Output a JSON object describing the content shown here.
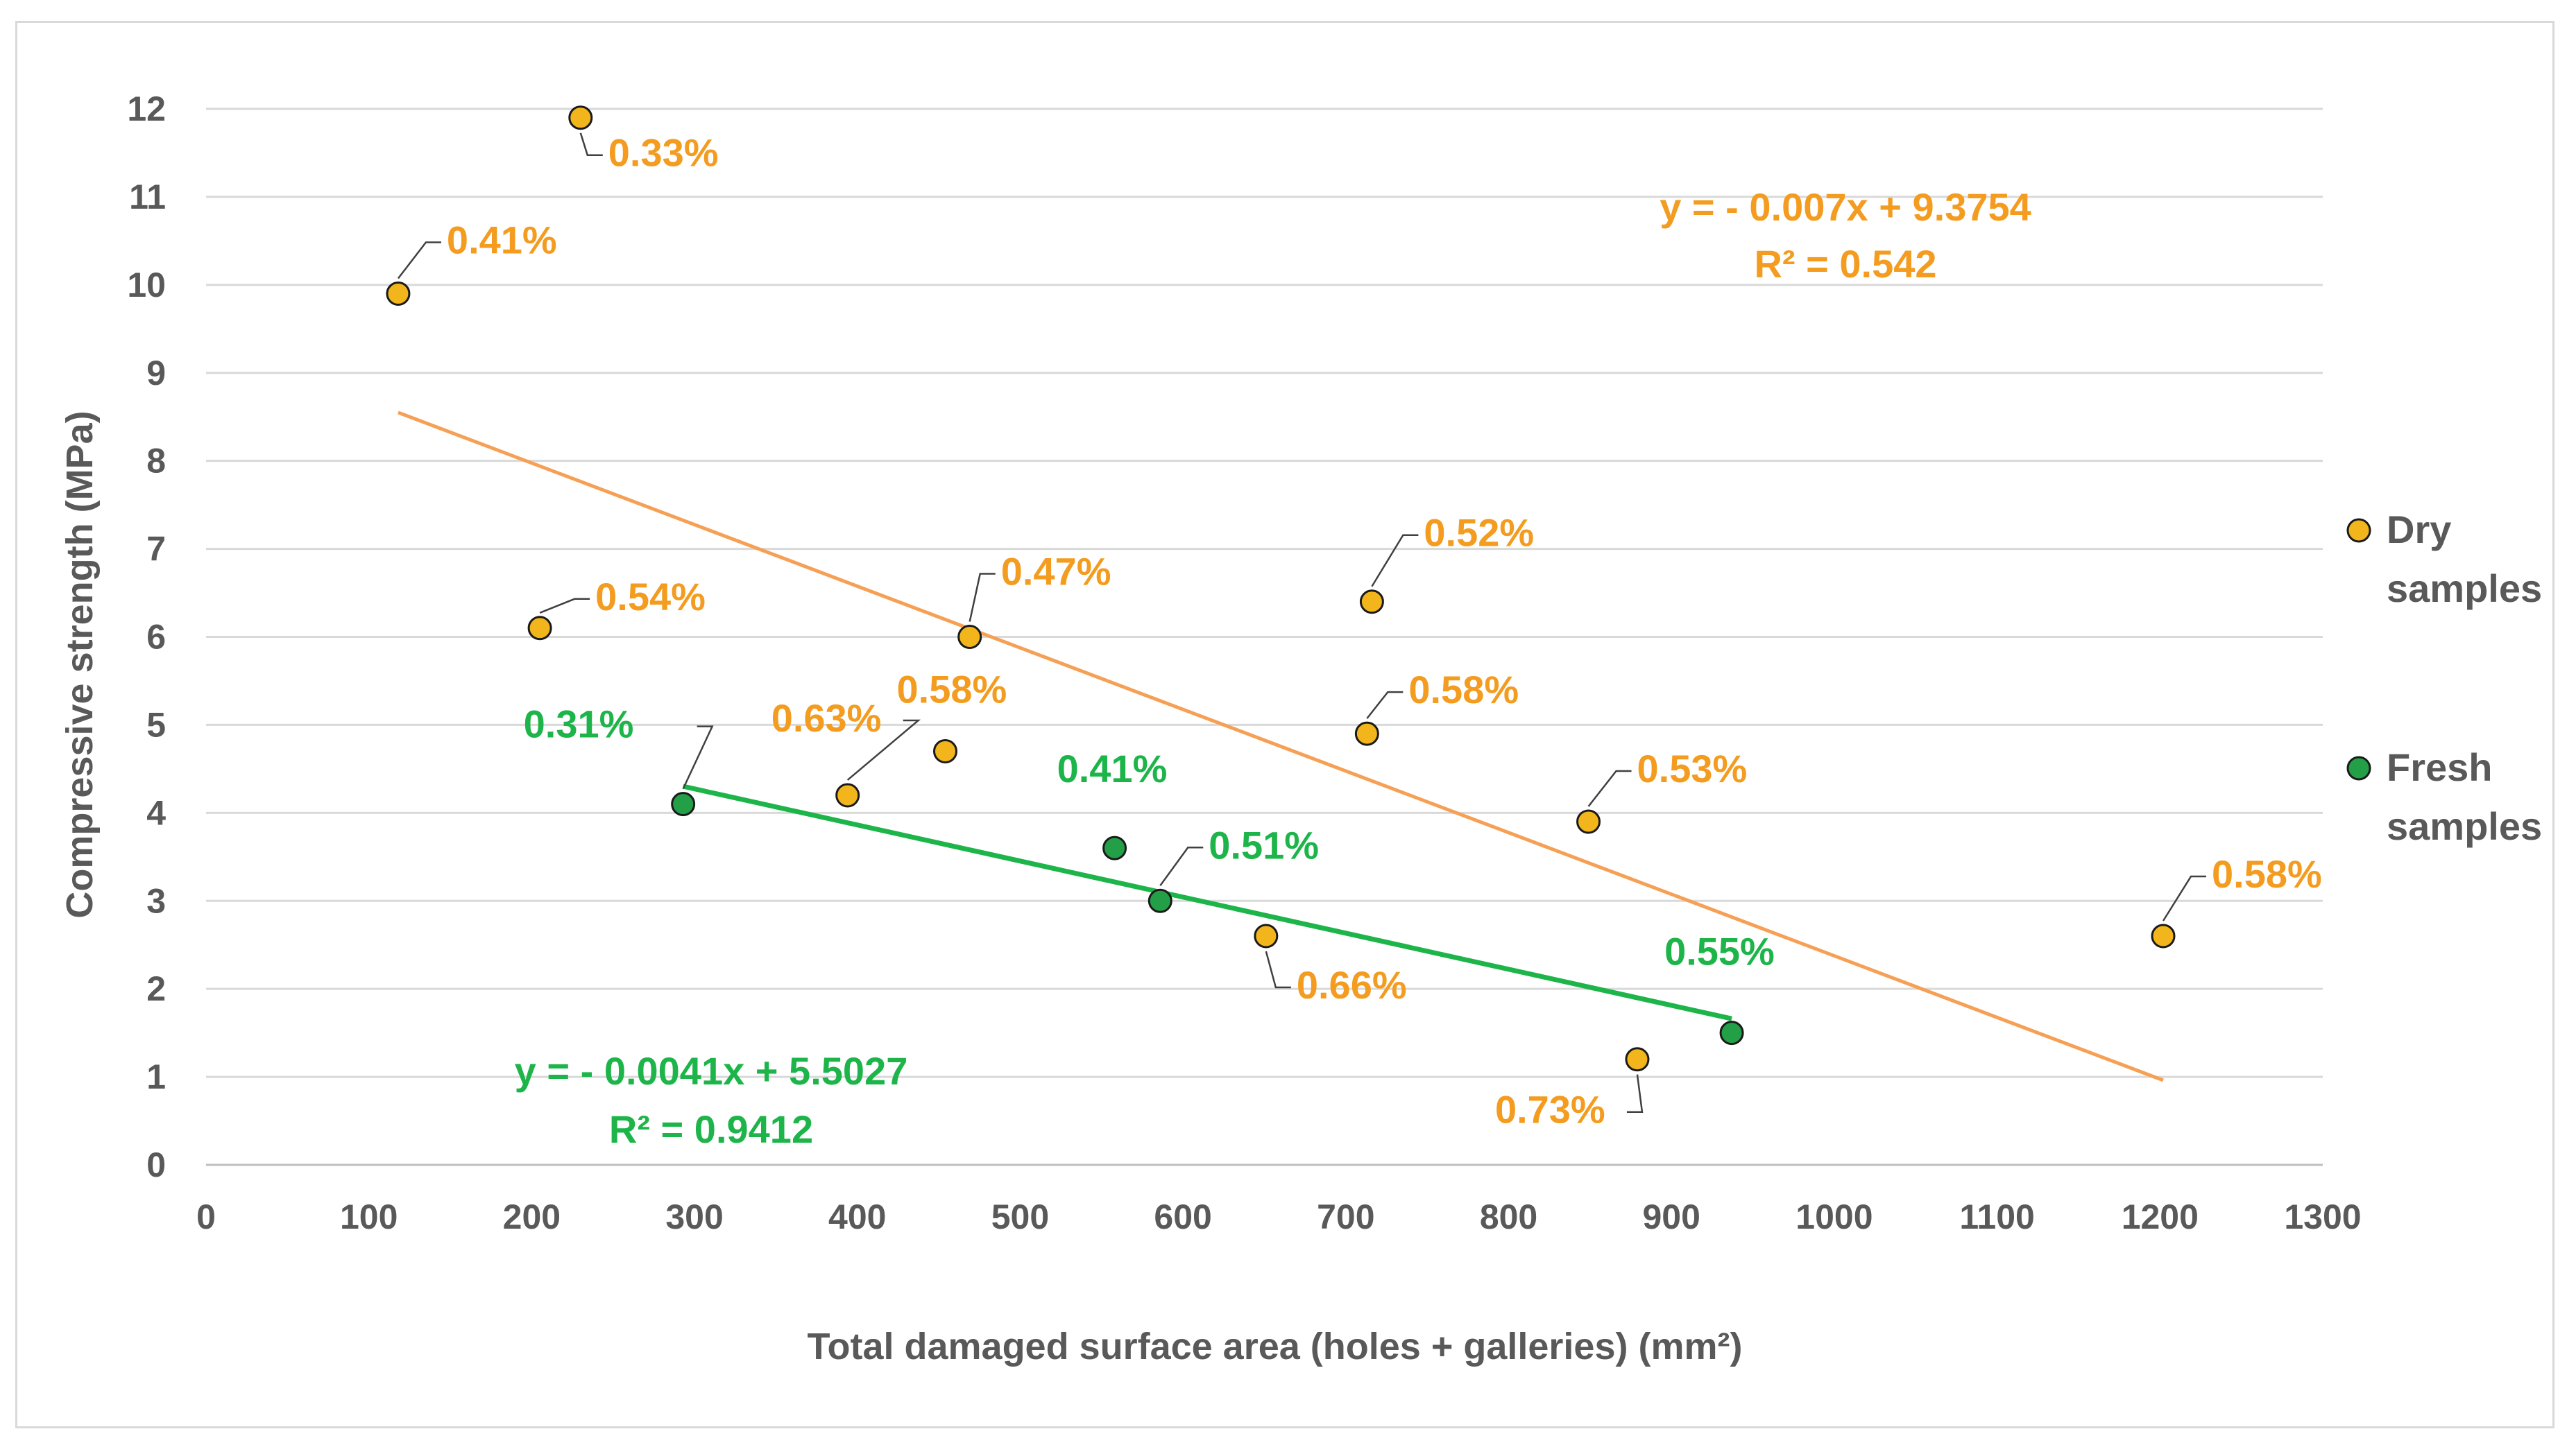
{
  "chart_data": {
    "type": "scatter",
    "xlabel": "Total damaged surface area (holes + galleries) (mm²)",
    "ylabel": "Compressive strength (MPa)",
    "xlim": [
      0,
      1300
    ],
    "ylim": [
      0,
      12
    ],
    "xticks": [
      "0",
      "100",
      "200",
      "300",
      "400",
      "500",
      "600",
      "700",
      "800",
      "900",
      "1000",
      "1100",
      "1200",
      "1300"
    ],
    "yticks": [
      "0",
      "1",
      "2",
      "3",
      "4",
      "5",
      "6",
      "7",
      "8",
      "9",
      "10",
      "11",
      "12"
    ],
    "grid": "horizontal",
    "legend_position": "right",
    "series": [
      {
        "name": "Dry samples",
        "legend_line1": "Dry",
        "legend_line2": "samples",
        "color": "#f2b51c",
        "label_color": "#f39c1f",
        "points": [
          {
            "x": 230,
            "y": 11.9,
            "label": "0.33%"
          },
          {
            "x": 118,
            "y": 9.9,
            "label": "0.41%"
          },
          {
            "x": 205,
            "y": 6.1,
            "label": "0.54%"
          },
          {
            "x": 469,
            "y": 6.0,
            "label": "0.47%"
          },
          {
            "x": 716,
            "y": 6.4,
            "label": "0.52%"
          },
          {
            "x": 454,
            "y": 4.7,
            "label": "0.58%"
          },
          {
            "x": 394,
            "y": 4.2,
            "label": "0.63%"
          },
          {
            "x": 713,
            "y": 4.9,
            "label": "0.58%"
          },
          {
            "x": 849,
            "y": 3.9,
            "label": "0.53%"
          },
          {
            "x": 651,
            "y": 2.6,
            "label": "0.66%"
          },
          {
            "x": 879,
            "y": 1.2,
            "label": "0.73%"
          },
          {
            "x": 1202,
            "y": 2.6,
            "label": "0.58%"
          }
        ],
        "trendline": {
          "slope": -0.007,
          "intercept": 9.3754,
          "x_start": 118,
          "x_end": 1202,
          "color": "#f6a055"
        },
        "equation": "y = - 0.007x + 9.3754",
        "r2": "R² = 0.542"
      },
      {
        "name": "Fresh samples",
        "legend_line1": "Fresh",
        "legend_line2": "samples",
        "color": "#23a047",
        "label_color": "#1db54a",
        "points": [
          {
            "x": 293,
            "y": 4.1,
            "label": "0.31%"
          },
          {
            "x": 558,
            "y": 3.6,
            "label": "0.41%"
          },
          {
            "x": 586,
            "y": 3.0,
            "label": "0.51%"
          },
          {
            "x": 937,
            "y": 1.5,
            "label": "0.55%"
          }
        ],
        "trendline": {
          "slope": -0.0041,
          "intercept": 5.5027,
          "x_start": 293,
          "x_end": 937,
          "color": "#1db54a"
        },
        "equation": "y = - 0.0041x + 5.5027",
        "r2": "R² = 0.9412"
      }
    ]
  }
}
